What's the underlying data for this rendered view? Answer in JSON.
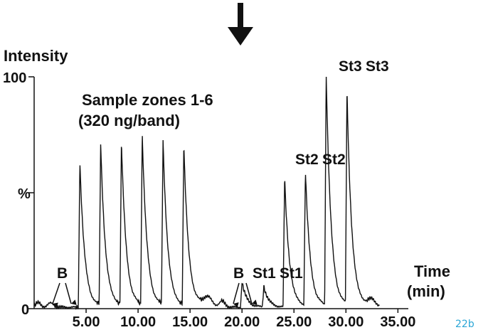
{
  "chart_data": {
    "type": "line",
    "ylabel": "Intensity",
    "y_max_label": "100",
    "y_mid_label": "%",
    "y_zero_label": "0",
    "xlabel_line1": "Time",
    "xlabel_line2": "(min)",
    "x_tick_labels": [
      "5.00",
      "10.00",
      "15.00",
      "20.00",
      "25.00",
      "30.00",
      "35.00"
    ],
    "x_ticks": [
      5,
      10,
      15,
      20,
      25,
      30,
      35
    ],
    "xlim": [
      0,
      36
    ],
    "ylim": [
      0,
      100
    ],
    "figure_id": "22b",
    "figure_id_color": "#2aa6d6",
    "annotations": {
      "sample_line1": "Sample zones 1-6",
      "sample_line2": "(320 ng/band)",
      "blank_left": "B",
      "blank_mid": "B",
      "st1_a": "St1",
      "st1_b": "St1",
      "st2_a": "St2",
      "st2_b": "St2",
      "st3_a": "St3",
      "st3_b": "St3"
    },
    "peaks": [
      {
        "t": 4.4,
        "h": 63,
        "label": "sample zone 1"
      },
      {
        "t": 6.4,
        "h": 70,
        "label": "sample zone 2"
      },
      {
        "t": 8.4,
        "h": 70,
        "label": "sample zone 3"
      },
      {
        "t": 10.4,
        "h": 74,
        "label": "sample zone 4"
      },
      {
        "t": 12.4,
        "h": 71,
        "label": "sample zone 5"
      },
      {
        "t": 14.4,
        "h": 69,
        "label": "sample zone 6"
      },
      {
        "t": 20.0,
        "h": 11,
        "label": "St1"
      },
      {
        "t": 22.1,
        "h": 9,
        "label": "St1"
      },
      {
        "t": 24.1,
        "h": 56,
        "label": "St2"
      },
      {
        "t": 26.1,
        "h": 58,
        "label": "St2"
      },
      {
        "t": 28.1,
        "h": 100,
        "label": "St3"
      },
      {
        "t": 30.1,
        "h": 92,
        "label": "St3"
      }
    ]
  }
}
